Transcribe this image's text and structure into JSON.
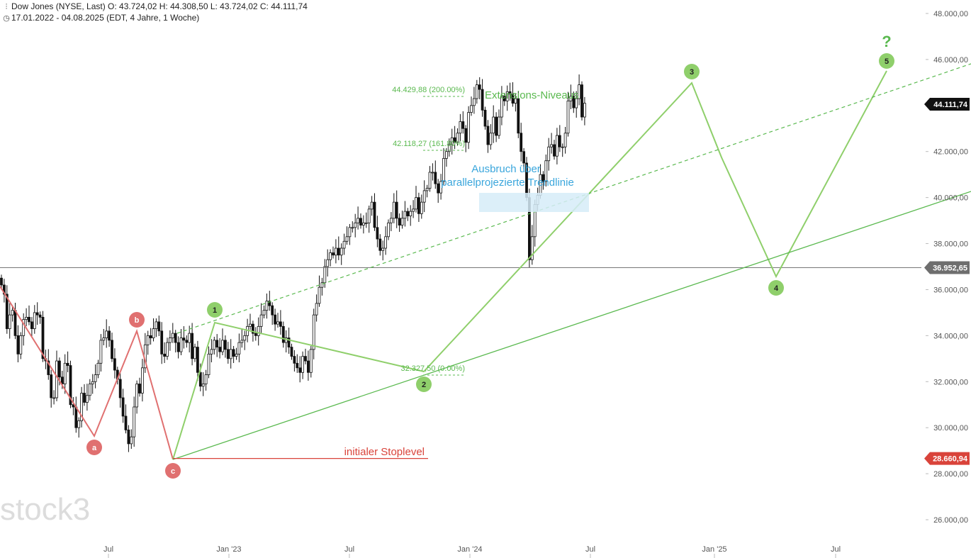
{
  "header": {
    "line1": "Dow Jones (NYSE, Last)  O: 43.724,02  H: 44.308,50  L: 43.724,02  C: 44.111,74",
    "line2": "17.01.2022 - 04.08.2025   (EDT, 4 Jahre, 1 Woche)",
    "icon1": "candlestick-icon",
    "icon2": "clock-icon"
  },
  "watermark": "stock3",
  "colors": {
    "green": "#8fcf6b",
    "green_dark": "#5ab94f",
    "red": "#e07070",
    "red_dark": "#d9433a",
    "blue": "#3aa6dc",
    "blue_fill": "#d6ecf8"
  },
  "chart_data": {
    "type": "candlestick",
    "title": "Dow Jones (NYSE, Last)",
    "ylim": [
      25500,
      48500
    ],
    "y_ticks": [
      "48.000,00",
      "46.000,00",
      "44.000,00",
      "42.000,00",
      "40.000,00",
      "38.000,00",
      "36.000,00",
      "34.000,00",
      "32.000,00",
      "30.000,00",
      "28.000,00",
      "26.000,00"
    ],
    "x_ticks": [
      "Jul",
      "Jan '23",
      "Jul",
      "Jan '24",
      "Jul",
      "Jan '25",
      "Jul"
    ],
    "price_tags": {
      "last": "44.111,74",
      "horizontal": "36.952,65",
      "stop": "28.660,94"
    },
    "fib_levels": [
      {
        "label": "44.429,88 (200.00%)",
        "value": 44429.88
      },
      {
        "label": "42.118,27 (161.80%)",
        "value": 42118.27
      },
      {
        "label": "32.327,50 (0.00%)",
        "value": 32327.5
      }
    ],
    "annotations": {
      "extensions": "Extensions-Niveaus",
      "breakout_line1": "Ausbruch über",
      "breakout_line2": "parallelprojezierte Trendlinie",
      "stoplevel": "initialer Stoplevel",
      "question": "?"
    },
    "elliott_waves": [
      {
        "label": "1",
        "value": 34700
      },
      {
        "label": "2",
        "value": 32300
      },
      {
        "label": "3",
        "value": 45100
      },
      {
        "label": "4",
        "value": 36600
      },
      {
        "label": "5",
        "value": 45500
      }
    ],
    "abc_waves": [
      {
        "label": "a",
        "value": 29600
      },
      {
        "label": "b",
        "value": 34300
      },
      {
        "label": "c",
        "value": 28660
      }
    ],
    "weekly_closes": [
      36200,
      35800,
      34300,
      34900,
      35100,
      34000,
      33200,
      34000,
      34700,
      34800,
      34600,
      34300,
      35000,
      34900,
      34800,
      33000,
      32900,
      32300,
      31300,
      31300,
      32900,
      32200,
      31900,
      32800,
      32700,
      31000,
      30900,
      30000,
      30300,
      31500,
      31100,
      31400,
      31900,
      32000,
      32300,
      32800,
      33800,
      33900,
      34200,
      33800,
      33000,
      32500,
      32100,
      31300,
      30500,
      29900,
      29300,
      29600,
      30900,
      31900,
      31500,
      32600,
      33600,
      34000,
      33900,
      34300,
      34600,
      34200,
      33200,
      33100,
      33700,
      33900,
      34100,
      33700,
      33300,
      33900,
      33800,
      33700,
      34100,
      33000,
      33500,
      32400,
      31800,
      31900,
      32300,
      33200,
      33400,
      33800,
      33500,
      33300,
      33800,
      33400,
      33000,
      33400,
      33100,
      33200,
      33700,
      33800,
      34000,
      34400,
      34500,
      34100,
      34000,
      34400,
      34900,
      35100,
      35500,
      35300,
      34900,
      34500,
      34600,
      34400,
      33700,
      33900,
      33500,
      33100,
      32800,
      32600,
      32400,
      33100,
      32900,
      32400,
      33400,
      34900,
      35400,
      36100,
      36300,
      37000,
      37300,
      37600,
      37500,
      37800,
      37500,
      37800,
      38100,
      38300,
      38700,
      38700,
      38900,
      39100,
      38800,
      38900,
      38900,
      39500,
      39800,
      38700,
      38200,
      37700,
      37800,
      38300,
      38900,
      39100,
      39800,
      39100,
      38800,
      39100,
      39400,
      39200,
      39400,
      39500,
      40000,
      39300,
      39800,
      40300,
      40400,
      41100,
      41100,
      40600,
      40200,
      40700,
      41700,
      42000,
      42300,
      42600,
      42400,
      42800,
      43300,
      43000,
      42400,
      43700,
      44000,
      44300,
      44900,
      44700,
      43800,
      43100,
      42300,
      42800,
      43500,
      42700,
      43500,
      44400,
      44200,
      44600,
      44500,
      44100,
      44300,
      42800,
      42000,
      41500,
      40000,
      37300,
      38300,
      39700,
      40100,
      41000,
      40700,
      41600,
      42200,
      42300,
      41800,
      42700,
      42200,
      42200,
      42800,
      44200,
      44400,
      43900,
      44300,
      44900,
      43500,
      44100
    ]
  }
}
